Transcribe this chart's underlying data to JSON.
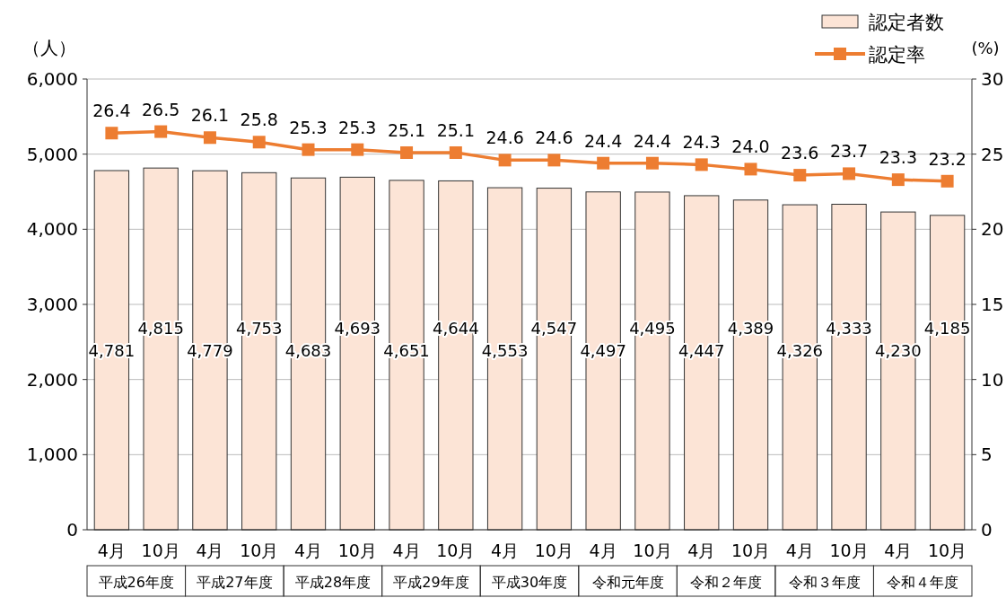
{
  "chart_data": {
    "type": "bar",
    "categories": [
      "4月",
      "10月",
      "4月",
      "10月",
      "4月",
      "10月",
      "4月",
      "10月",
      "4月",
      "10月",
      "4月",
      "10月",
      "4月",
      "10月",
      "4月",
      "10月",
      "4月",
      "10月"
    ],
    "ylabel": "（人）",
    "y2label": "(%)",
    "ylim": [
      0,
      6000
    ],
    "yticks": [
      0,
      {
        "value": 1000,
        "label": "1,000"
      },
      {
        "value": 2000,
        "label": "2,000"
      },
      {
        "value": 3000,
        "label": "3,000"
      },
      {
        "value": 4000,
        "label": "4,000"
      },
      {
        "value": 5000,
        "label": "5,000"
      },
      {
        "value": 6000,
        "label": "6,000"
      }
    ],
    "y2lim": [
      0,
      30
    ],
    "y2ticks": [
      0,
      5,
      10,
      15,
      20,
      25,
      30
    ],
    "grid": "y",
    "legend": "top right",
    "annotations": [
      "平成26年度",
      "平成27年度",
      "平成28年度",
      "平成29年度",
      "平成30年度",
      "令和元年度",
      "令和２年度",
      "令和３年度",
      "令和４年度"
    ],
    "series": [
      {
        "name": "認定者数",
        "color": "#fce4d6",
        "values": [
          4781,
          4815,
          4779,
          4753,
          4683,
          4693,
          4651,
          4644,
          4553,
          4547,
          4497,
          4495,
          4447,
          4389,
          4326,
          4333,
          4230,
          4185
        ],
        "value_labels": [
          "4,781",
          "4,815",
          "4,779",
          "4,753",
          "4,683",
          "4,693",
          "4,651",
          "4,644",
          "4,553",
          "4,547",
          "4,497",
          "4,495",
          "4,447",
          "4,389",
          "4,326",
          "4,333",
          "4,230",
          "4,185"
        ]
      },
      {
        "name": "認定率",
        "type": "line",
        "axis": "y2",
        "color": "#ed7d31",
        "marker": "square",
        "values": [
          26.4,
          26.5,
          26.1,
          25.8,
          25.3,
          25.3,
          25.1,
          25.1,
          24.6,
          24.6,
          24.4,
          24.4,
          24.3,
          24.0,
          23.6,
          23.7,
          23.3,
          23.2
        ],
        "value_labels": [
          "26.4",
          "26.5",
          "26.1",
          "25.8",
          "25.3",
          "25.3",
          "25.1",
          "25.1",
          "24.6",
          "24.6",
          "24.4",
          "24.4",
          "24.3",
          "24.0",
          "23.6",
          "23.7",
          "23.3",
          "23.2"
        ]
      }
    ]
  }
}
